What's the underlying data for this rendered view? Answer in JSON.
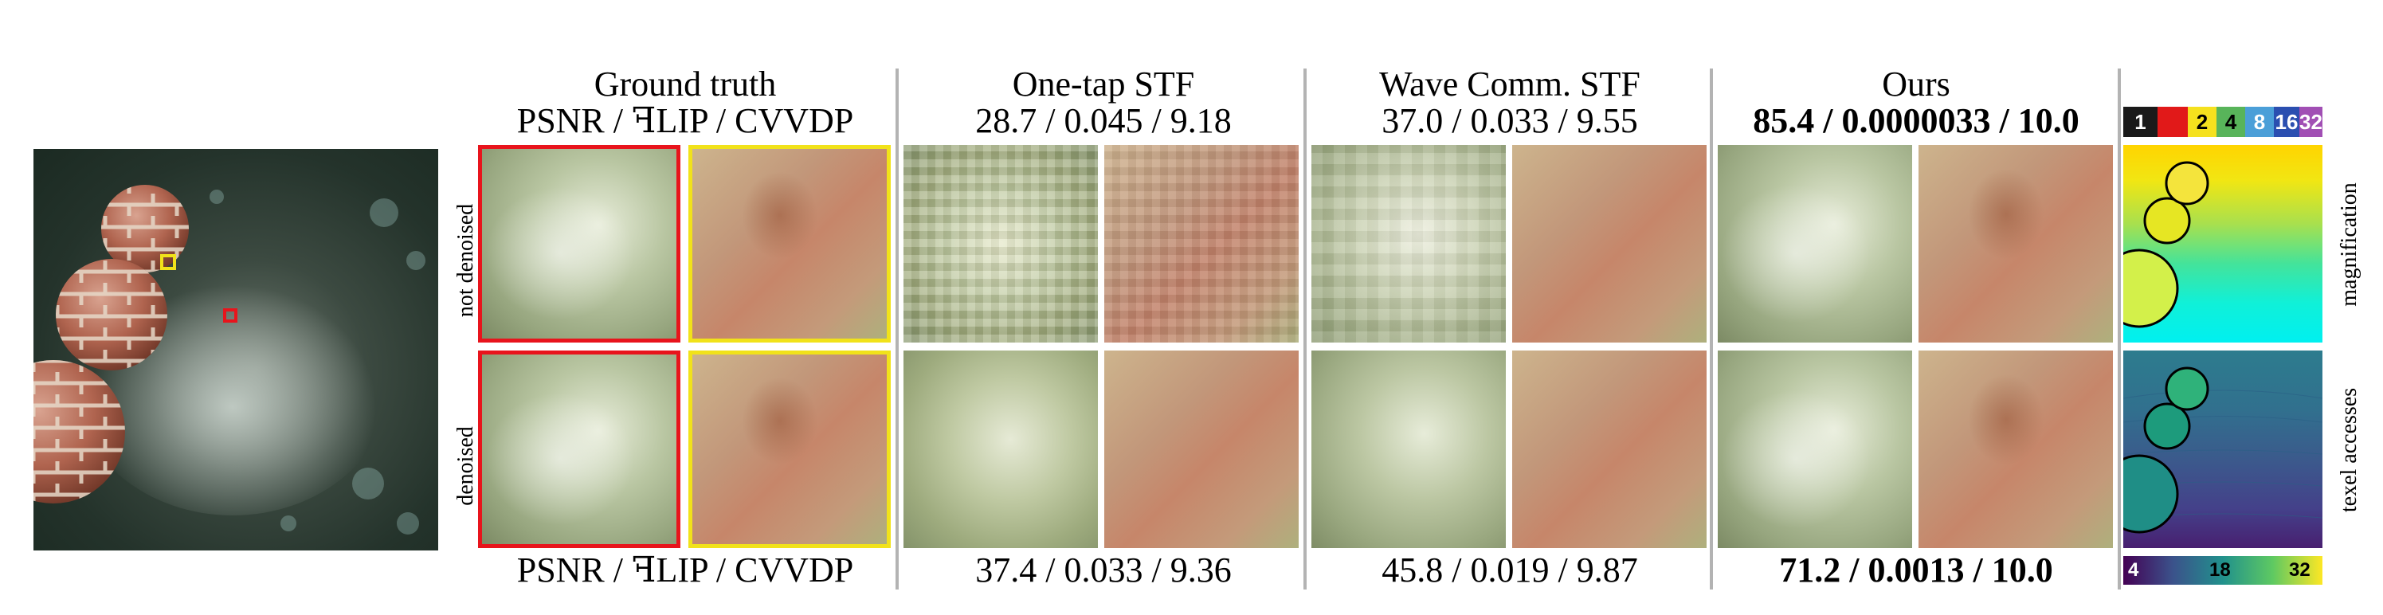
{
  "columns": {
    "ground_truth": {
      "title": "Ground truth",
      "metric_label_top": "PSNR / ꟻLIP / CVVDP",
      "metric_label_bottom": "PSNR / ꟻLIP / CVVDP"
    },
    "one_tap": {
      "title": "One-tap STF",
      "metrics_not_denoised": "28.7 / 0.045 / 9.18",
      "metrics_denoised": "37.4 / 0.033 / 9.36"
    },
    "wave_comm": {
      "title": "Wave Comm. STF",
      "metrics_not_denoised": "37.0 / 0.033 / 9.55",
      "metrics_denoised": "45.8 / 0.019 / 9.87"
    },
    "ours": {
      "title": "Ours",
      "metrics_not_denoised": "85.4 / 0.0000033 / 10.0",
      "metrics_denoised": "71.2 / 0.0013 / 10.0"
    }
  },
  "row_labels": {
    "top": "not denoised",
    "bottom": "denoised"
  },
  "side_labels": {
    "top": "magnification",
    "bottom": "texel accesses"
  },
  "colorbar_top": {
    "labels": [
      "1",
      "2",
      "4",
      "8",
      "16",
      "32"
    ],
    "colors": [
      "#1a1a1a",
      "#e11919",
      "#f5e11e",
      "#58b45a",
      "#4b9fd8",
      "#2b4fb0",
      "#a14fb4"
    ]
  },
  "colorbar_bottom": {
    "labels": [
      "4",
      "18",
      "32"
    ]
  },
  "colors": {
    "inset_red": "#e8141c",
    "inset_yellow": "#f1e21a",
    "separator": "#b3b3b3"
  }
}
